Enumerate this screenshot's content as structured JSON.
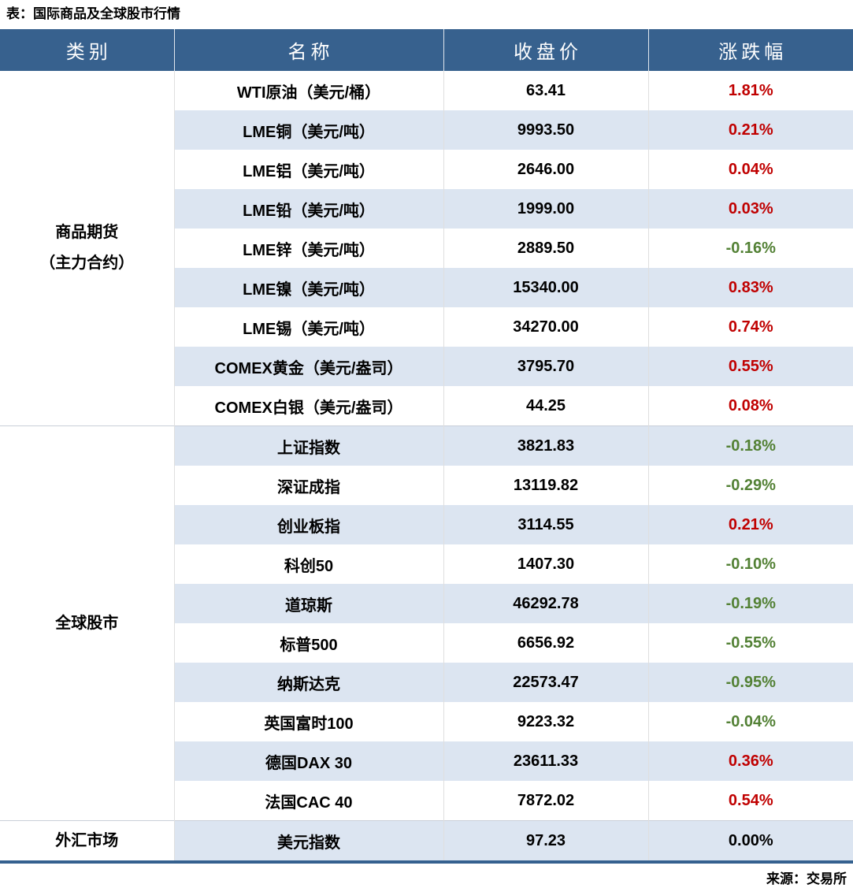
{
  "title": "表：国际商品及全球股市行情",
  "source": "来源：交易所",
  "colors": {
    "header_bg": "#37618E",
    "row_alt": "#DCE5F1",
    "positive_red": "#C00000",
    "negative_green": "#538135",
    "neutral_black": "#000000",
    "table_border_blue": "#35618F"
  },
  "table": {
    "headers": [
      "类别",
      "名称",
      "收盘价",
      "涨跌幅"
    ],
    "sections": [
      {
        "category_lines": [
          "商品期货",
          "（主力合约）"
        ],
        "rows": [
          {
            "name": "WTI原油（美元/桶）",
            "close": "63.41",
            "change": "1.81%",
            "direction": "up"
          },
          {
            "name": "LME铜（美元/吨）",
            "close": "9993.50",
            "change": "0.21%",
            "direction": "up"
          },
          {
            "name": "LME铝（美元/吨）",
            "close": "2646.00",
            "change": "0.04%",
            "direction": "up"
          },
          {
            "name": "LME铅（美元/吨）",
            "close": "1999.00",
            "change": "0.03%",
            "direction": "up"
          },
          {
            "name": "LME锌（美元/吨）",
            "close": "2889.50",
            "change": "-0.16%",
            "direction": "down"
          },
          {
            "name": "LME镍（美元/吨）",
            "close": "15340.00",
            "change": "0.83%",
            "direction": "up"
          },
          {
            "name": "LME锡（美元/吨）",
            "close": "34270.00",
            "change": "0.74%",
            "direction": "up"
          },
          {
            "name": "COMEX黄金（美元/盎司）",
            "close": "3795.70",
            "change": "0.55%",
            "direction": "up"
          },
          {
            "name": "COMEX白银（美元/盎司）",
            "close": "44.25",
            "change": "0.08%",
            "direction": "up"
          }
        ]
      },
      {
        "category_lines": [
          "全球股市"
        ],
        "rows": [
          {
            "name": "上证指数",
            "close": "3821.83",
            "change": "-0.18%",
            "direction": "down"
          },
          {
            "name": "深证成指",
            "close": "13119.82",
            "change": "-0.29%",
            "direction": "down"
          },
          {
            "name": "创业板指",
            "close": "3114.55",
            "change": "0.21%",
            "direction": "up"
          },
          {
            "name": "科创50",
            "close": "1407.30",
            "change": "-0.10%",
            "direction": "down"
          },
          {
            "name": "道琼斯",
            "close": "46292.78",
            "change": "-0.19%",
            "direction": "down"
          },
          {
            "name": "标普500",
            "close": "6656.92",
            "change": "-0.55%",
            "direction": "down"
          },
          {
            "name": "纳斯达克",
            "close": "22573.47",
            "change": "-0.95%",
            "direction": "down"
          },
          {
            "name": "英国富时100",
            "close": "9223.32",
            "change": "-0.04%",
            "direction": "down"
          },
          {
            "name": "德国DAX 30",
            "close": "23611.33",
            "change": "0.36%",
            "direction": "up"
          },
          {
            "name": "法国CAC 40",
            "close": "7872.02",
            "change": "0.54%",
            "direction": "up"
          }
        ]
      },
      {
        "category_lines": [
          "外汇市场"
        ],
        "rows": [
          {
            "name": "美元指数",
            "close": "97.23",
            "change": "0.00%",
            "direction": "flat"
          }
        ]
      }
    ]
  },
  "chart_data": {
    "type": "table",
    "title": "表：国际商品及全球股市行情",
    "columns": [
      "类别",
      "名称",
      "收盘价",
      "涨跌幅"
    ],
    "rows": [
      [
        "商品期货（主力合约）",
        "WTI原油（美元/桶）",
        "63.41",
        "1.81%"
      ],
      [
        "商品期货（主力合约）",
        "LME铜（美元/吨）",
        "9993.50",
        "0.21%"
      ],
      [
        "商品期货（主力合约）",
        "LME铝（美元/吨）",
        "2646.00",
        "0.04%"
      ],
      [
        "商品期货（主力合约）",
        "LME铅（美元/吨）",
        "1999.00",
        "0.03%"
      ],
      [
        "商品期货（主力合约）",
        "LME锌（美元/吨）",
        "2889.50",
        "-0.16%"
      ],
      [
        "商品期货（主力合约）",
        "LME镍（美元/吨）",
        "15340.00",
        "0.83%"
      ],
      [
        "商品期货（主力合约）",
        "LME锡（美元/吨）",
        "34270.00",
        "0.74%"
      ],
      [
        "商品期货（主力合约）",
        "COMEX黄金（美元/盎司）",
        "3795.70",
        "0.55%"
      ],
      [
        "商品期货（主力合约）",
        "COMEX白银（美元/盎司）",
        "44.25",
        "0.08%"
      ],
      [
        "全球股市",
        "上证指数",
        "3821.83",
        "-0.18%"
      ],
      [
        "全球股市",
        "深证成指",
        "13119.82",
        "-0.29%"
      ],
      [
        "全球股市",
        "创业板指",
        "3114.55",
        "0.21%"
      ],
      [
        "全球股市",
        "科创50",
        "1407.30",
        "-0.10%"
      ],
      [
        "全球股市",
        "道琼斯",
        "46292.78",
        "-0.19%"
      ],
      [
        "全球股市",
        "标普500",
        "6656.92",
        "-0.55%"
      ],
      [
        "全球股市",
        "纳斯达克",
        "22573.47",
        "-0.95%"
      ],
      [
        "全球股市",
        "英国富时100",
        "9223.32",
        "-0.04%"
      ],
      [
        "全球股市",
        "德国DAX 30",
        "23611.33",
        "0.36%"
      ],
      [
        "全球股市",
        "法国CAC 40",
        "7872.02",
        "0.54%"
      ],
      [
        "外汇市场",
        "美元指数",
        "97.23",
        "0.00%"
      ]
    ],
    "color_rule": "positive=red #C00000, negative=green #538135, zero=black",
    "source": "来源：交易所"
  }
}
